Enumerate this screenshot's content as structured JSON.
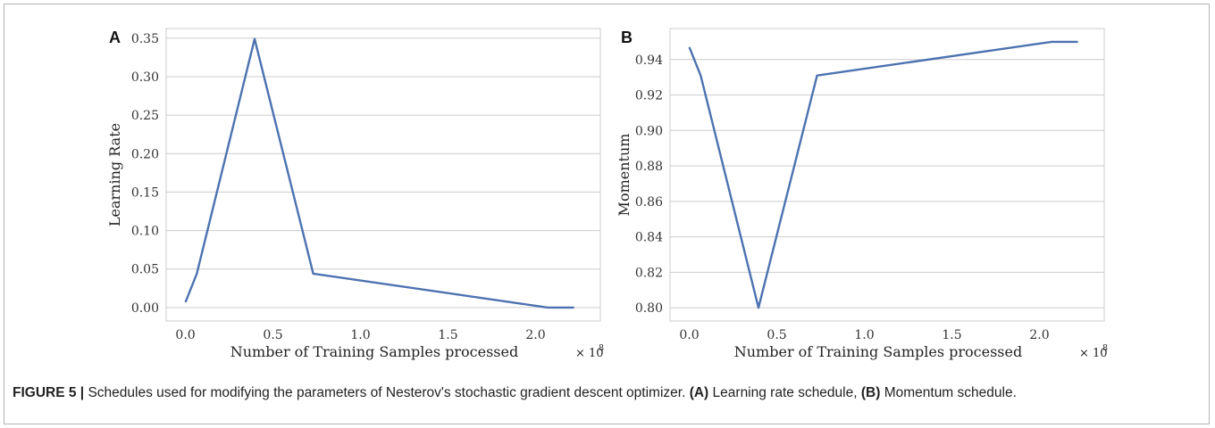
{
  "figure": {
    "caption_label": "FIGURE 5 |",
    "caption_text_1": " Schedules used for modifying the parameters of Nesterov's stochastic gradient descent optimizer. ",
    "caption_a": "(A)",
    "caption_text_2": " Learning rate schedule, ",
    "caption_b": "(B)",
    "caption_text_3": " Momentum schedule."
  },
  "colors": {
    "line": "#4c72b0",
    "grid": "#cccccc",
    "axis": "#cccccc"
  },
  "chart_data": [
    {
      "type": "line",
      "panel_label": "A",
      "title": "",
      "xlabel": "Number of Training Samples processed",
      "ylabel": "Learning Rate",
      "x_offset_text": "× 10",
      "x_offset_exp": "8",
      "xlim": [
        -0.11,
        2.37
      ],
      "ylim": [
        -0.0175,
        0.3625
      ],
      "xticks": [
        0.0,
        0.5,
        1.0,
        1.5,
        2.0
      ],
      "xtick_labels": [
        "0.0",
        "0.5",
        "1.0",
        "1.5",
        "2.0"
      ],
      "yticks": [
        0.0,
        0.05,
        0.1,
        0.15,
        0.2,
        0.25,
        0.3,
        0.35
      ],
      "ytick_labels": [
        "0.00",
        "0.05",
        "0.10",
        "0.15",
        "0.20",
        "0.25",
        "0.30",
        "0.35"
      ],
      "grid": "horizontal",
      "series": [
        {
          "x": [
            0.0,
            0.065,
            0.395,
            0.73,
            2.07,
            2.22
          ],
          "y": [
            0.007,
            0.044,
            0.349,
            0.044,
            0.0,
            0.0
          ]
        }
      ]
    },
    {
      "type": "line",
      "panel_label": "B",
      "title": "",
      "xlabel": "Number of Training Samples processed",
      "ylabel": "Momentum",
      "x_offset_text": "× 10",
      "x_offset_exp": "8",
      "xlim": [
        -0.11,
        2.37
      ],
      "ylim": [
        0.7925,
        0.9575
      ],
      "xticks": [
        0.0,
        0.5,
        1.0,
        1.5,
        2.0
      ],
      "xtick_labels": [
        "0.0",
        "0.5",
        "1.0",
        "1.5",
        "2.0"
      ],
      "yticks": [
        0.8,
        0.82,
        0.84,
        0.86,
        0.88,
        0.9,
        0.92,
        0.94
      ],
      "ytick_labels": [
        "0.80",
        "0.82",
        "0.84",
        "0.86",
        "0.88",
        "0.90",
        "0.92",
        "0.94"
      ],
      "grid": "horizontal",
      "series": [
        {
          "x": [
            0.0,
            0.065,
            0.395,
            0.73,
            2.07,
            2.22
          ],
          "y": [
            0.947,
            0.931,
            0.8,
            0.931,
            0.95,
            0.95
          ]
        }
      ]
    }
  ]
}
